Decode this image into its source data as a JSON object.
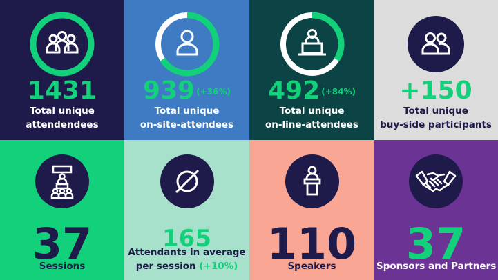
{
  "colors": {
    "navy": "#1E1A4A",
    "blue": "#3E7BC3",
    "teal": "#0C4446",
    "light_gray": "#DCDCDC",
    "green": "#13D17A",
    "mint": "#A7E1CC",
    "salmon": "#F9A695",
    "purple": "#6B3494"
  },
  "tiles": [
    {
      "value": "1431",
      "label_line1": "Total unique",
      "label_line2": "attendendees",
      "icon": "group-icon",
      "ring_fraction": 1.0
    },
    {
      "value": "939",
      "badge": "(+36%)",
      "label_line1": "Total unique",
      "label_line2": "on-site-attendees",
      "icon": "person-icon",
      "ring_fraction": 0.66
    },
    {
      "value": "492",
      "badge": "(+84%)",
      "label_line1": "Total unique",
      "label_line2": "on-line-attendees",
      "icon": "laptop-user-icon",
      "ring_fraction": 0.34
    },
    {
      "value": "+150",
      "label_line1": "Total unique",
      "label_line2": "buy-side participants",
      "icon": "two-people-icon"
    },
    {
      "value": "37",
      "label_line1": "Sessions",
      "icon": "presentation-icon"
    },
    {
      "value": "165",
      "label_line1": "Attendants in average",
      "label_line2": "per session",
      "badge": "(+10%)",
      "icon": "empty-set-icon"
    },
    {
      "value": "110",
      "label_line1": "Speakers",
      "icon": "podium-speaker-icon"
    },
    {
      "value": "37",
      "label_line1": "Sponsors and Partners",
      "icon": "handshake-icon"
    }
  ]
}
